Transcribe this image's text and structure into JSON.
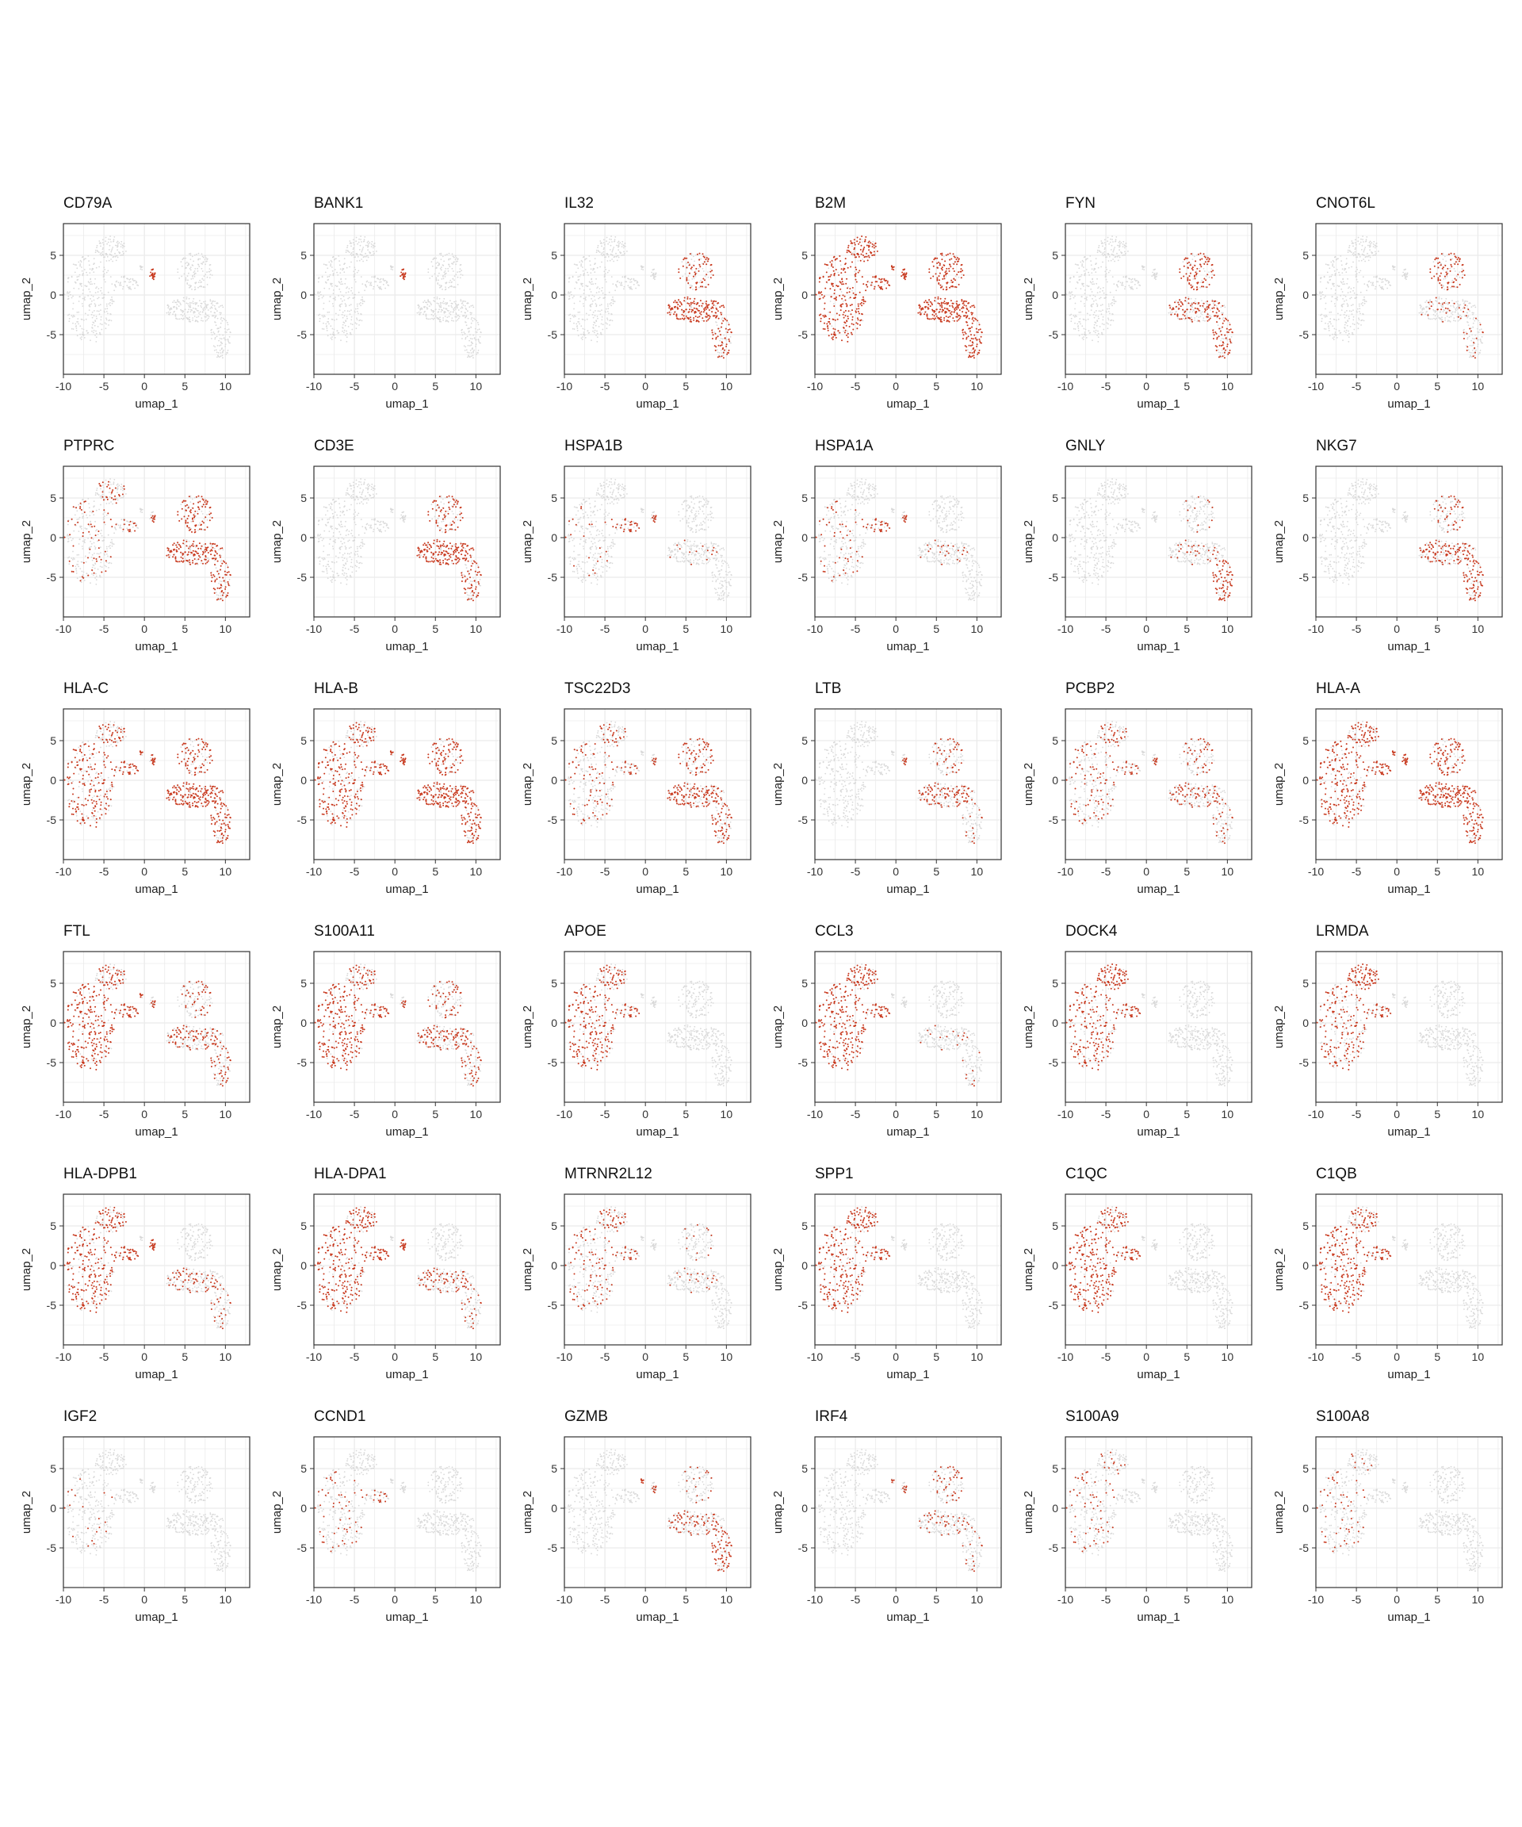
{
  "figure": {
    "colors": {
      "low": "#d9d9d9",
      "high": "#c8381d",
      "grid": "#ebebeb",
      "frame": "#333333"
    }
  },
  "chart_data": {
    "type": "scatter",
    "embedding": "umap",
    "xlabel": "umap_1",
    "ylabel": "umap_2",
    "xlim": [
      -10,
      13
    ],
    "ylim": [
      -10,
      9
    ],
    "xticks": [
      "-10",
      "-5",
      "0",
      "5",
      "10"
    ],
    "yticks": [
      "5",
      "0",
      "-5"
    ],
    "grid": true,
    "legend": "none",
    "color_scale": [
      "#d9d9d9",
      "#c8381d"
    ],
    "clusters": [
      {
        "name": "myeloid-left",
        "cx": -6.8,
        "cy": -0.5,
        "rx": 3.2,
        "ry": 5.6
      },
      {
        "name": "myeloid-top",
        "cx": -4.2,
        "cy": 5.8,
        "rx": 2.0,
        "ry": 1.6
      },
      {
        "name": "myeloid-bridge",
        "cx": -2.2,
        "cy": 1.5,
        "rx": 1.6,
        "ry": 0.9
      },
      {
        "name": "b-cells",
        "cx": 1.0,
        "cy": 2.6,
        "rx": 0.35,
        "ry": 0.7
      },
      {
        "name": "small-mid",
        "cx": -0.4,
        "cy": 3.5,
        "rx": 0.2,
        "ry": 0.5
      },
      {
        "name": "t-upper",
        "cx": 6.3,
        "cy": 3.0,
        "rx": 2.2,
        "ry": 2.4
      },
      {
        "name": "t-lower",
        "cx": 6.2,
        "cy": -1.8,
        "rx": 3.6,
        "ry": 1.6
      },
      {
        "name": "nk-tail",
        "cx": 9.4,
        "cy": -5.4,
        "rx": 1.3,
        "ry": 2.6
      }
    ],
    "panels": [
      {
        "gene": "CD79A",
        "expression": {
          "b-cells": 0.95
        }
      },
      {
        "gene": "BANK1",
        "expression": {
          "b-cells": 0.9
        }
      },
      {
        "gene": "IL32",
        "expression": {
          "t-upper": 0.5,
          "t-lower": 0.85,
          "nk-tail": 0.6
        }
      },
      {
        "gene": "B2M",
        "expression": {
          "myeloid-left": 0.9,
          "myeloid-top": 0.85,
          "myeloid-bridge": 0.9,
          "b-cells": 0.9,
          "small-mid": 0.8,
          "t-upper": 0.85,
          "t-lower": 0.95,
          "nk-tail": 0.95
        }
      },
      {
        "gene": "FYN",
        "expression": {
          "t-upper": 0.7,
          "t-lower": 0.5,
          "nk-tail": 0.7
        }
      },
      {
        "gene": "CNOT6L",
        "expression": {
          "t-upper": 0.6,
          "t-lower": 0.15,
          "nk-tail": 0.2
        }
      },
      {
        "gene": "PTPRC",
        "expression": {
          "myeloid-left": 0.25,
          "myeloid-top": 0.3,
          "myeloid-bridge": 0.2,
          "b-cells": 0.5,
          "t-upper": 0.7,
          "t-lower": 0.75,
          "nk-tail": 0.7
        }
      },
      {
        "gene": "CD3E",
        "expression": {
          "t-upper": 0.5,
          "t-lower": 0.85,
          "nk-tail": 0.6
        }
      },
      {
        "gene": "HSPA1B",
        "expression": {
          "myeloid-left": 0.1,
          "myeloid-bridge": 0.5,
          "b-cells": 0.5,
          "t-lower": 0.08
        }
      },
      {
        "gene": "HSPA1A",
        "expression": {
          "myeloid-left": 0.2,
          "myeloid-bridge": 0.5,
          "b-cells": 0.6,
          "t-lower": 0.12
        }
      },
      {
        "gene": "GNLY",
        "expression": {
          "t-upper": 0.1,
          "t-lower": 0.15,
          "nk-tail": 0.85
        }
      },
      {
        "gene": "NKG7",
        "expression": {
          "t-upper": 0.3,
          "t-lower": 0.55,
          "nk-tail": 0.8
        }
      },
      {
        "gene": "HLA-C",
        "expression": {
          "myeloid-left": 0.6,
          "myeloid-top": 0.45,
          "myeloid-bridge": 0.55,
          "b-cells": 0.7,
          "small-mid": 0.5,
          "t-upper": 0.6,
          "t-lower": 0.85,
          "nk-tail": 0.85
        }
      },
      {
        "gene": "HLA-B",
        "expression": {
          "myeloid-left": 0.7,
          "myeloid-top": 0.55,
          "myeloid-bridge": 0.6,
          "b-cells": 0.8,
          "small-mid": 0.5,
          "t-upper": 0.7,
          "t-lower": 0.85,
          "nk-tail": 0.85
        }
      },
      {
        "gene": "TSC22D3",
        "expression": {
          "myeloid-left": 0.3,
          "myeloid-top": 0.3,
          "myeloid-bridge": 0.25,
          "b-cells": 0.4,
          "t-upper": 0.5,
          "t-lower": 0.65,
          "nk-tail": 0.6
        }
      },
      {
        "gene": "LTB",
        "expression": {
          "b-cells": 0.6,
          "t-upper": 0.3,
          "t-lower": 0.5,
          "nk-tail": 0.15
        }
      },
      {
        "gene": "PCBP2",
        "expression": {
          "myeloid-left": 0.35,
          "myeloid-top": 0.35,
          "myeloid-bridge": 0.3,
          "b-cells": 0.5,
          "t-upper": 0.3,
          "t-lower": 0.35,
          "nk-tail": 0.3
        }
      },
      {
        "gene": "HLA-A",
        "expression": {
          "myeloid-left": 0.75,
          "myeloid-top": 0.65,
          "myeloid-bridge": 0.7,
          "b-cells": 0.8,
          "small-mid": 0.6,
          "t-upper": 0.7,
          "t-lower": 0.85,
          "nk-tail": 0.85
        }
      },
      {
        "gene": "FTL",
        "expression": {
          "myeloid-left": 0.85,
          "myeloid-top": 0.55,
          "myeloid-bridge": 0.7,
          "b-cells": 0.4,
          "small-mid": 0.5,
          "t-upper": 0.3,
          "t-lower": 0.45,
          "nk-tail": 0.5
        }
      },
      {
        "gene": "S100A11",
        "expression": {
          "myeloid-left": 0.85,
          "myeloid-top": 0.5,
          "myeloid-bridge": 0.6,
          "b-cells": 0.35,
          "t-upper": 0.35,
          "t-lower": 0.5,
          "nk-tail": 0.5
        }
      },
      {
        "gene": "APOE",
        "expression": {
          "myeloid-left": 0.7,
          "myeloid-top": 0.55,
          "myeloid-bridge": 0.5
        }
      },
      {
        "gene": "CCL3",
        "expression": {
          "myeloid-left": 0.85,
          "myeloid-top": 0.75,
          "myeloid-bridge": 0.7,
          "t-lower": 0.08,
          "nk-tail": 0.1
        }
      },
      {
        "gene": "DOCK4",
        "expression": {
          "myeloid-left": 0.65,
          "myeloid-top": 0.85,
          "myeloid-bridge": 0.55
        }
      },
      {
        "gene": "LRMDA",
        "expression": {
          "myeloid-left": 0.55,
          "myeloid-top": 0.85,
          "myeloid-bridge": 0.5
        }
      },
      {
        "gene": "HLA-DPB1",
        "expression": {
          "myeloid-left": 0.7,
          "myeloid-top": 0.6,
          "myeloid-bridge": 0.8,
          "b-cells": 0.85,
          "t-lower": 0.3,
          "nk-tail": 0.25
        }
      },
      {
        "gene": "HLA-DPA1",
        "expression": {
          "myeloid-left": 0.75,
          "myeloid-top": 0.65,
          "myeloid-bridge": 0.8,
          "b-cells": 0.85,
          "t-lower": 0.35,
          "nk-tail": 0.3
        }
      },
      {
        "gene": "MTRNR2L12",
        "expression": {
          "myeloid-left": 0.35,
          "myeloid-top": 0.4,
          "myeloid-bridge": 0.3,
          "t-upper": 0.1,
          "t-lower": 0.1
        }
      },
      {
        "gene": "SPP1",
        "expression": {
          "myeloid-left": 0.7,
          "myeloid-top": 0.75,
          "myeloid-bridge": 0.55
        }
      },
      {
        "gene": "C1QC",
        "expression": {
          "myeloid-left": 0.85,
          "myeloid-top": 0.6,
          "myeloid-bridge": 0.6
        }
      },
      {
        "gene": "C1QB",
        "expression": {
          "myeloid-left": 0.8,
          "myeloid-top": 0.55,
          "myeloid-bridge": 0.55
        }
      },
      {
        "gene": "IGF2",
        "expression": {
          "myeloid-left": 0.08
        }
      },
      {
        "gene": "CCND1",
        "expression": {
          "myeloid-left": 0.2,
          "myeloid-bridge": 0.2
        }
      },
      {
        "gene": "GZMB",
        "expression": {
          "b-cells": 0.3,
          "small-mid": 0.8,
          "t-upper": 0.15,
          "t-lower": 0.35,
          "nk-tail": 0.75
        }
      },
      {
        "gene": "IRF4",
        "expression": {
          "b-cells": 0.4,
          "small-mid": 0.4,
          "t-upper": 0.3,
          "t-lower": 0.2,
          "nk-tail": 0.15
        }
      },
      {
        "gene": "S100A9",
        "expression": {
          "myeloid-left": 0.25,
          "myeloid-top": 0.1
        }
      },
      {
        "gene": "S100A8",
        "expression": {
          "myeloid-left": 0.2,
          "myeloid-top": 0.05
        }
      }
    ]
  }
}
